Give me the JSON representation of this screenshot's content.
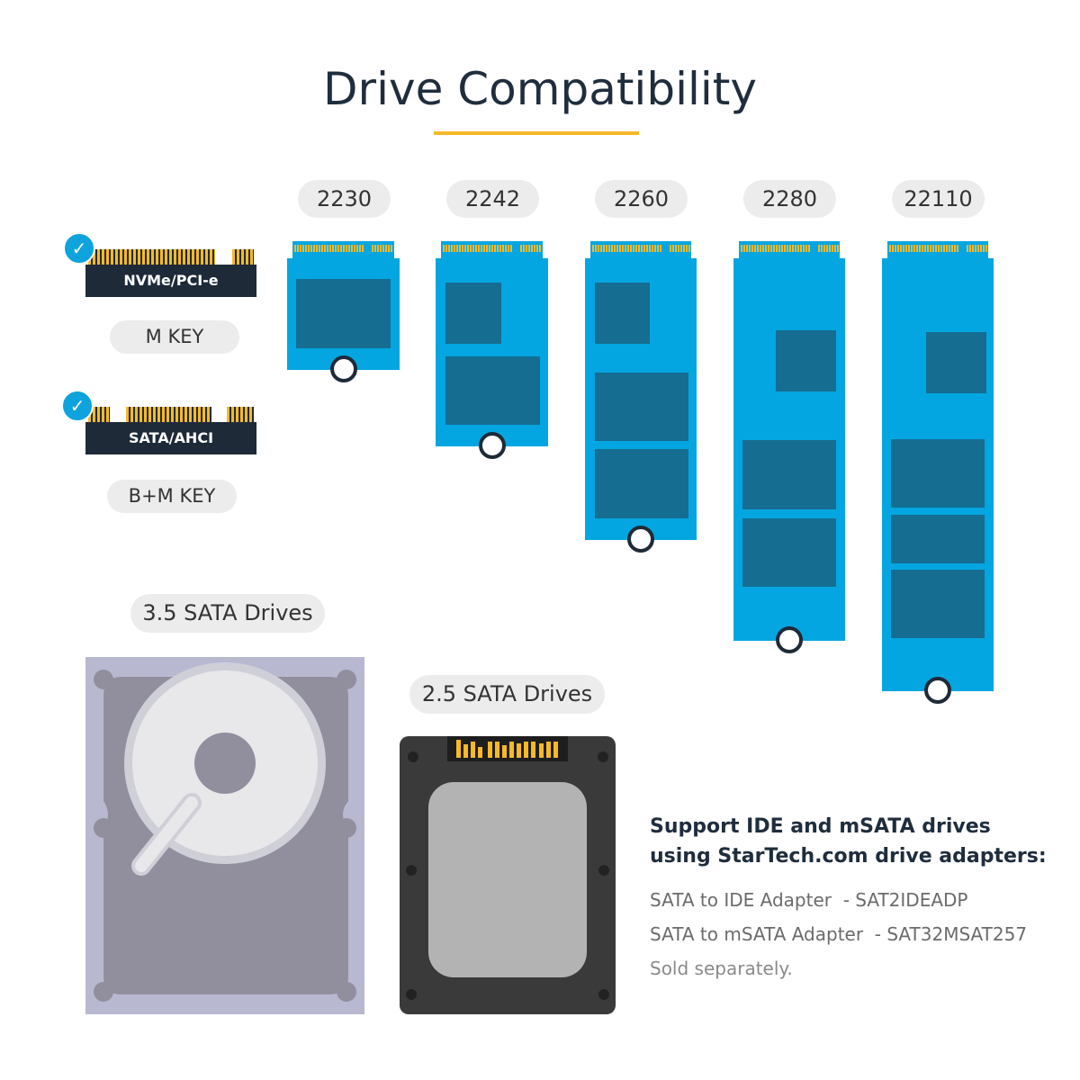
{
  "title": "Drive Compatibility",
  "m2_sizes": [
    "2230",
    "2242",
    "2260",
    "2280",
    "22110"
  ],
  "keys": [
    {
      "interface": "NVMe/PCI-e",
      "key": "M KEY",
      "supported": true
    },
    {
      "interface": "SATA/AHCI",
      "key": "B+M KEY",
      "supported": true
    }
  ],
  "drives": {
    "hdd_label": "3.5 SATA Drives",
    "ssd_label": "2.5 SATA Drives"
  },
  "adapters": {
    "heading_line1": "Support IDE and mSATA drives",
    "heading_line2": "using StarTech.com drive adapters:",
    "items": [
      "SATA to IDE Adapter  - SAT2IDEADP",
      "SATA to mSATA Adapter  - SAT32MSAT257"
    ],
    "footnote": "Sold separately."
  },
  "colors": {
    "accent": "#f7b928",
    "card": "#03a6e0",
    "chip": "#156d91",
    "check": "#0ea3dd"
  }
}
